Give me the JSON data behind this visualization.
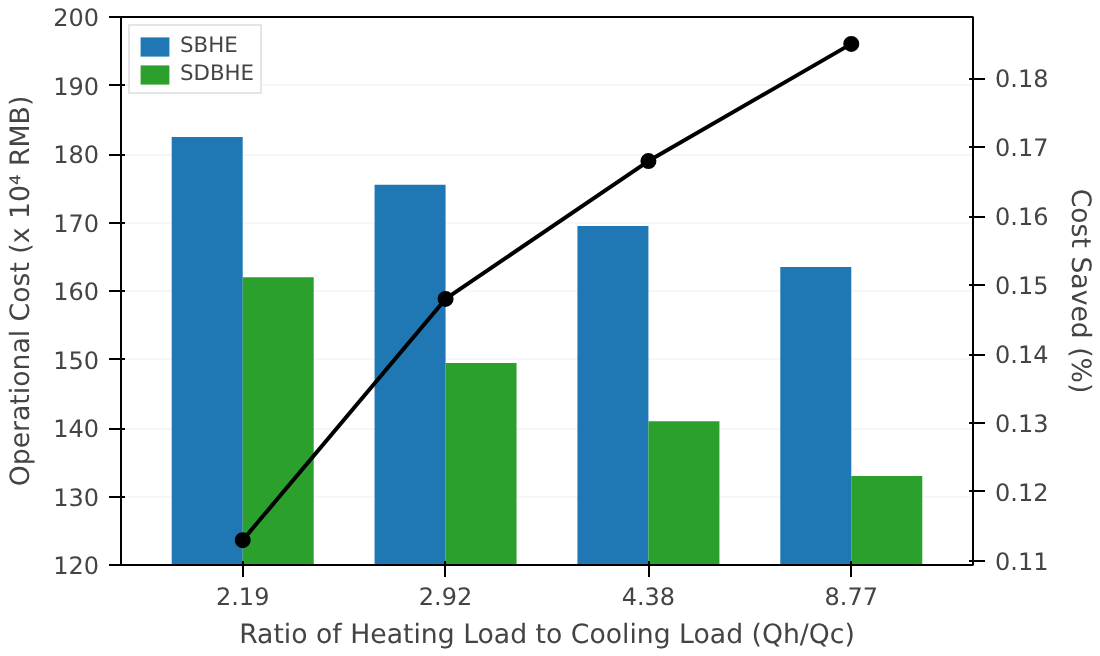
{
  "chart_data": {
    "type": "bar",
    "xlabel": "Ratio of Heating Load to Cooling Load (Qh/Qc)",
    "ylabel": "Operational Cost (x 10⁴ RMB)",
    "y2label": "Cost Saved (%)",
    "categories": [
      "2.19",
      "2.92",
      "4.38",
      "8.77"
    ],
    "series": [
      {
        "name": "SBHE",
        "color": "#1f77b4",
        "values": [
          182.5,
          175.5,
          169.5,
          163.5
        ]
      },
      {
        "name": "SDBHE",
        "color": "#2ca02c",
        "values": [
          162,
          149.5,
          141,
          133
        ]
      },
      {
        "type": "line",
        "axis": "y2",
        "color": "#000000",
        "values": [
          0.113,
          0.148,
          0.168,
          0.185
        ]
      }
    ],
    "ylim": [
      120,
      200
    ],
    "yticks": [
      120,
      130,
      140,
      150,
      160,
      170,
      180,
      190,
      200
    ],
    "y2lim": [
      0.1094,
      0.1889
    ],
    "y2ticks": [
      0.11,
      0.12,
      0.13,
      0.14,
      0.15,
      0.16,
      0.17,
      0.18
    ],
    "grid": "y",
    "legend": "top left",
    "marker": "circle",
    "line_style": "solid"
  }
}
